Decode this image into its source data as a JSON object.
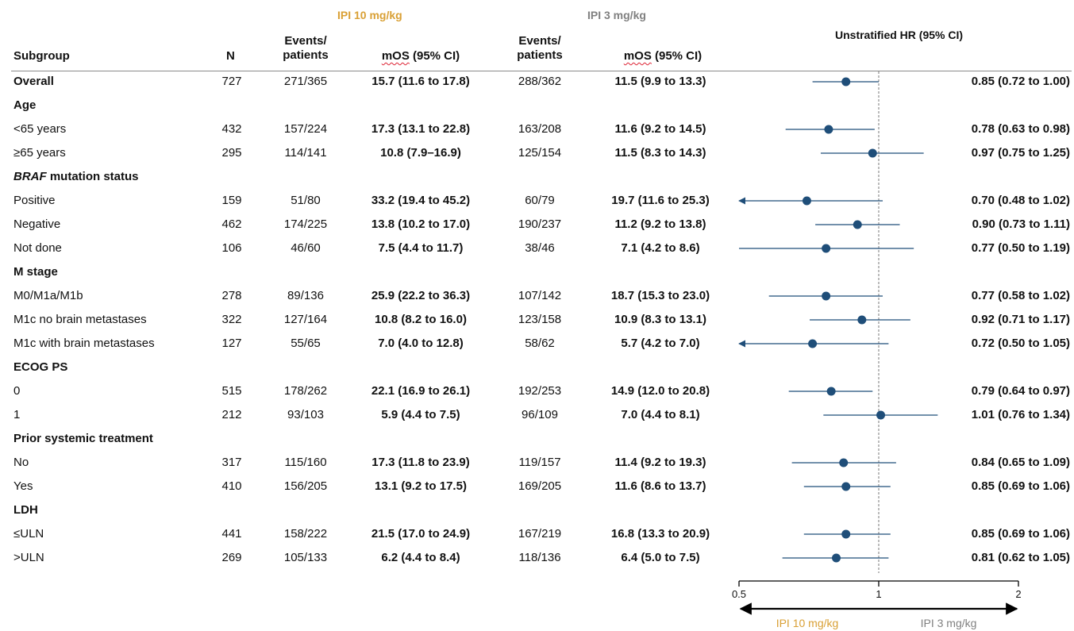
{
  "header": {
    "ipi10_title": "IPI 10 mg/kg",
    "ipi3_title": "IPI 3 mg/kg",
    "subgroup": "Subgroup",
    "n": "N",
    "events_line1": "Events/",
    "events_line2": "patients",
    "mos_word": "mOS",
    "mos_rest": " (95% CI)",
    "hr_title": "Unstratified HR (95% CI)"
  },
  "colors": {
    "ipi10": "#d9a035",
    "ipi3": "#808080",
    "marker": "#1f4e79"
  },
  "rows": [
    {
      "label": "Overall",
      "bold": true,
      "n": "727",
      "ev10": "271/365",
      "mos10": "15.7 (11.6 to 17.8)",
      "ev3": "288/362",
      "mos3": "11.5 (9.9 to 13.3)",
      "hr_text": "0.85 (0.72 to 1.00)"
    },
    {
      "label": "Age",
      "header": true
    },
    {
      "label": "<65 years",
      "n": "432",
      "ev10": "157/224",
      "mos10": "17.3 (13.1 to 22.8)",
      "ev3": "163/208",
      "mos3": "11.6 (9.2 to 14.5)",
      "hr_text": "0.78 (0.63 to 0.98)"
    },
    {
      "label": "≥65 years",
      "n": "295",
      "ev10": "114/141",
      "mos10": "10.8 (7.9–16.9)",
      "ev3": "125/154",
      "mos3": "11.5 (8.3 to 14.3)",
      "hr_text": "0.97 (0.75 to 1.25)"
    },
    {
      "label": "BRAF mutation status",
      "label_italic": "BRAF",
      "label_rest": " mutation status",
      "header": true
    },
    {
      "label": "Positive",
      "n": "159",
      "ev10": "51/80",
      "mos10": "33.2 (19.4 to 45.2)",
      "ev3": "60/79",
      "mos3": "19.7 (11.6 to 25.3)",
      "hr_text": "0.70 (0.48 to 1.02)"
    },
    {
      "label": "Negative",
      "n": "462",
      "ev10": "174/225",
      "mos10": "13.8 (10.2 to 17.0)",
      "ev3": "190/237",
      "mos3": "11.2 (9.2 to 13.8)",
      "hr_text": "0.90 (0.73 to 1.11)"
    },
    {
      "label": "Not done",
      "n": "106",
      "ev10": "46/60",
      "mos10": "7.5 (4.4 to 11.7)",
      "ev3": "38/46",
      "mos3": "7.1 (4.2 to 8.6)",
      "hr_text": "0.77 (0.50 to 1.19)"
    },
    {
      "label": "M stage",
      "header": true
    },
    {
      "label": "M0/M1a/M1b",
      "n": "278",
      "ev10": "89/136",
      "mos10": "25.9 (22.2 to 36.3)",
      "ev3": "107/142",
      "mos3": "18.7 (15.3 to 23.0)",
      "hr_text": "0.77 (0.58 to 1.02)"
    },
    {
      "label": "M1c no brain metastases",
      "n": "322",
      "ev10": "127/164",
      "mos10": "10.8 (8.2 to 16.0)",
      "ev3": "123/158",
      "mos3": "10.9 (8.3 to 13.1)",
      "hr_text": "0.92 (0.71 to 1.17)"
    },
    {
      "label": "M1c with brain metastases",
      "n": "127",
      "ev10": "55/65",
      "mos10": "7.0 (4.0 to 12.8)",
      "ev3": "58/62",
      "mos3": "5.7 (4.2 to 7.0)",
      "hr_text": "0.72 (0.50 to 1.05)"
    },
    {
      "label": "ECOG PS",
      "header": true
    },
    {
      "label": "0",
      "n": "515",
      "ev10": "178/262",
      "mos10": "22.1 (16.9 to 26.1)",
      "ev3": "192/253",
      "mos3": "14.9 (12.0 to 20.8)",
      "hr_text": "0.79 (0.64 to 0.97)"
    },
    {
      "label": "1",
      "n": "212",
      "ev10": "93/103",
      "mos10": "5.9 (4.4 to 7.5)",
      "ev3": "96/109",
      "mos3": "7.0 (4.4 to 8.1)",
      "hr_text": "1.01 (0.76 to 1.34)"
    },
    {
      "label": "Prior systemic treatment",
      "header": true
    },
    {
      "label": "No",
      "n": "317",
      "ev10": "115/160",
      "mos10": "17.3 (11.8 to 23.9)",
      "ev3": "119/157",
      "mos3": "11.4 (9.2 to 19.3)",
      "hr_text": "0.84 (0.65 to 1.09)"
    },
    {
      "label": "Yes",
      "n": "410",
      "ev10": "156/205",
      "mos10": "13.1 (9.2 to 17.5)",
      "ev3": "169/205",
      "mos3": "11.6 (8.6 to 13.7)",
      "hr_text": "0.85 (0.69 to 1.06)"
    },
    {
      "label": "LDH",
      "header": true
    },
    {
      "label": "≤ULN",
      "n": "441",
      "ev10": "158/222",
      "mos10": "21.5 (17.0 to 24.9)",
      "ev3": "167/219",
      "mos3": "16.8 (13.3 to 20.9)",
      "hr_text": "0.85 (0.69 to 1.06)"
    },
    {
      "label": ">ULN",
      "n": "269",
      "ev10": "105/133",
      "mos10": "6.2 (4.4 to 8.4)",
      "ev3": "118/136",
      "mos3": "6.4 (5.0 to 7.5)",
      "hr_text": "0.81 (0.62 to 1.05)"
    }
  ],
  "chart_data": {
    "type": "forest",
    "scale": "log",
    "xlim": [
      0.5,
      2
    ],
    "reference_line": 1,
    "xticks": [
      "0.5",
      "1",
      "2"
    ],
    "left_direction_label": "IPI 10 mg/kg",
    "right_direction_label": "IPI 3 mg/kg",
    "points": [
      {
        "subgroup": "Overall",
        "hr": 0.85,
        "lo": 0.72,
        "hi": 1.0
      },
      {
        "subgroup": "<65 years",
        "hr": 0.78,
        "lo": 0.63,
        "hi": 0.98
      },
      {
        "subgroup": "≥65 years",
        "hr": 0.97,
        "lo": 0.75,
        "hi": 1.25
      },
      {
        "subgroup": "Positive",
        "hr": 0.7,
        "lo": 0.48,
        "hi": 1.02,
        "lo_arrow": true
      },
      {
        "subgroup": "Negative",
        "hr": 0.9,
        "lo": 0.73,
        "hi": 1.11
      },
      {
        "subgroup": "Not done",
        "hr": 0.77,
        "lo": 0.5,
        "hi": 1.19
      },
      {
        "subgroup": "M0/M1a/M1b",
        "hr": 0.77,
        "lo": 0.58,
        "hi": 1.02
      },
      {
        "subgroup": "M1c no brain metastases",
        "hr": 0.92,
        "lo": 0.71,
        "hi": 1.17
      },
      {
        "subgroup": "M1c with brain metastases",
        "hr": 0.72,
        "lo": 0.5,
        "hi": 1.05,
        "lo_arrow": true
      },
      {
        "subgroup": "0",
        "hr": 0.79,
        "lo": 0.64,
        "hi": 0.97
      },
      {
        "subgroup": "1",
        "hr": 1.01,
        "lo": 0.76,
        "hi": 1.34
      },
      {
        "subgroup": "No",
        "hr": 0.84,
        "lo": 0.65,
        "hi": 1.09
      },
      {
        "subgroup": "Yes",
        "hr": 0.85,
        "lo": 0.69,
        "hi": 1.06
      },
      {
        "subgroup": "≤ULN",
        "hr": 0.85,
        "lo": 0.69,
        "hi": 1.06
      },
      {
        "subgroup": ">ULN",
        "hr": 0.81,
        "lo": 0.62,
        "hi": 1.05
      }
    ]
  }
}
